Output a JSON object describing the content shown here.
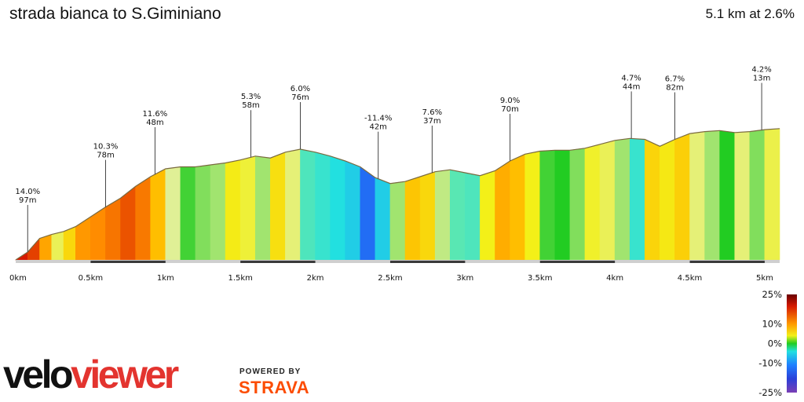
{
  "header": {
    "title": "strada bianca to S.Giminiano",
    "summary": "5.1 km at 2.6%"
  },
  "branding": {
    "logo_part1": "velo",
    "logo_part2": "viewer",
    "powered_by": "POWERED BY",
    "strava": "STRAVA"
  },
  "chart_data": {
    "type": "area",
    "title": "strada bianca to S.Giminiano",
    "xlabel": "",
    "ylabel": "",
    "xlim": [
      0,
      5.1
    ],
    "ylim": [
      0,
      105
    ],
    "x_ticks": [
      "0km",
      "0.5km",
      "1km",
      "1.5km",
      "2km",
      "2.5km",
      "3km",
      "3.5km",
      "4km",
      "4.5km",
      "5km"
    ],
    "x_tick_values": [
      0,
      0.5,
      1,
      1.5,
      2,
      2.5,
      3,
      3.5,
      4,
      4.5,
      5
    ],
    "profile_x": [
      0,
      0.08,
      0.16,
      0.24,
      0.32,
      0.4,
      0.5,
      0.6,
      0.7,
      0.8,
      0.9,
      1.0,
      1.1,
      1.2,
      1.3,
      1.4,
      1.5,
      1.6,
      1.7,
      1.8,
      1.9,
      2.0,
      2.1,
      2.2,
      2.3,
      2.4,
      2.5,
      2.6,
      2.7,
      2.8,
      2.9,
      3.0,
      3.1,
      3.2,
      3.3,
      3.4,
      3.5,
      3.6,
      3.7,
      3.8,
      3.9,
      4.0,
      4.1,
      4.2,
      4.3,
      4.4,
      4.5,
      4.6,
      4.7,
      4.8,
      4.9,
      5.0,
      5.1
    ],
    "profile_elev": [
      0,
      8,
      22,
      26,
      29,
      34,
      44,
      54,
      63,
      75,
      85,
      93,
      95,
      95,
      97,
      99,
      102,
      106,
      104,
      110,
      113,
      110,
      106,
      101,
      95,
      84,
      78,
      80,
      85,
      90,
      92,
      89,
      86,
      91,
      101,
      108,
      111,
      112,
      112,
      114,
      118,
      122,
      124,
      123,
      116,
      123,
      129,
      131,
      132,
      130,
      131,
      133,
      134
    ],
    "gradient_pct": [
      14.0,
      13.0,
      9.5,
      4.0,
      6.5,
      10.3,
      11.0,
      11.6,
      12.5,
      11.5,
      8.0,
      3.0,
      0.5,
      1.5,
      2.0,
      5.3,
      4.5,
      2.0,
      6.0,
      3.5,
      -3.0,
      -4.0,
      -5.0,
      -6.0,
      -11.4,
      -6.0,
      2.0,
      7.6,
      6.5,
      2.5,
      -2.5,
      -3.0,
      5.0,
      9.0,
      8.0,
      5.0,
      0.5,
      0.0,
      1.5,
      4.7,
      4.0,
      2.0,
      -4.0,
      6.7,
      5.5,
      7.0,
      3.5,
      2.0,
      0.0,
      3.5,
      1.5,
      4.2
    ],
    "annotations": [
      {
        "x": 0.08,
        "grade": "14.0%",
        "dist": "97m"
      },
      {
        "x": 0.6,
        "grade": "10.3%",
        "dist": "78m"
      },
      {
        "x": 0.93,
        "grade": "11.6%",
        "dist": "48m"
      },
      {
        "x": 1.57,
        "grade": "5.3%",
        "dist": "58m"
      },
      {
        "x": 1.9,
        "grade": "6.0%",
        "dist": "76m"
      },
      {
        "x": 2.42,
        "grade": "-11.4%",
        "dist": "42m"
      },
      {
        "x": 2.78,
        "grade": "7.6%",
        "dist": "37m"
      },
      {
        "x": 3.3,
        "grade": "9.0%",
        "dist": "70m"
      },
      {
        "x": 4.11,
        "grade": "4.7%",
        "dist": "44m"
      },
      {
        "x": 4.4,
        "grade": "6.7%",
        "dist": "82m"
      },
      {
        "x": 4.98,
        "grade": "4.2%",
        "dist": "13m"
      }
    ],
    "scale_labels": [
      "25%",
      "10%",
      "0%",
      "-10%",
      "-25%"
    ],
    "scale_values": [
      25,
      10,
      0,
      -10,
      -25
    ]
  }
}
